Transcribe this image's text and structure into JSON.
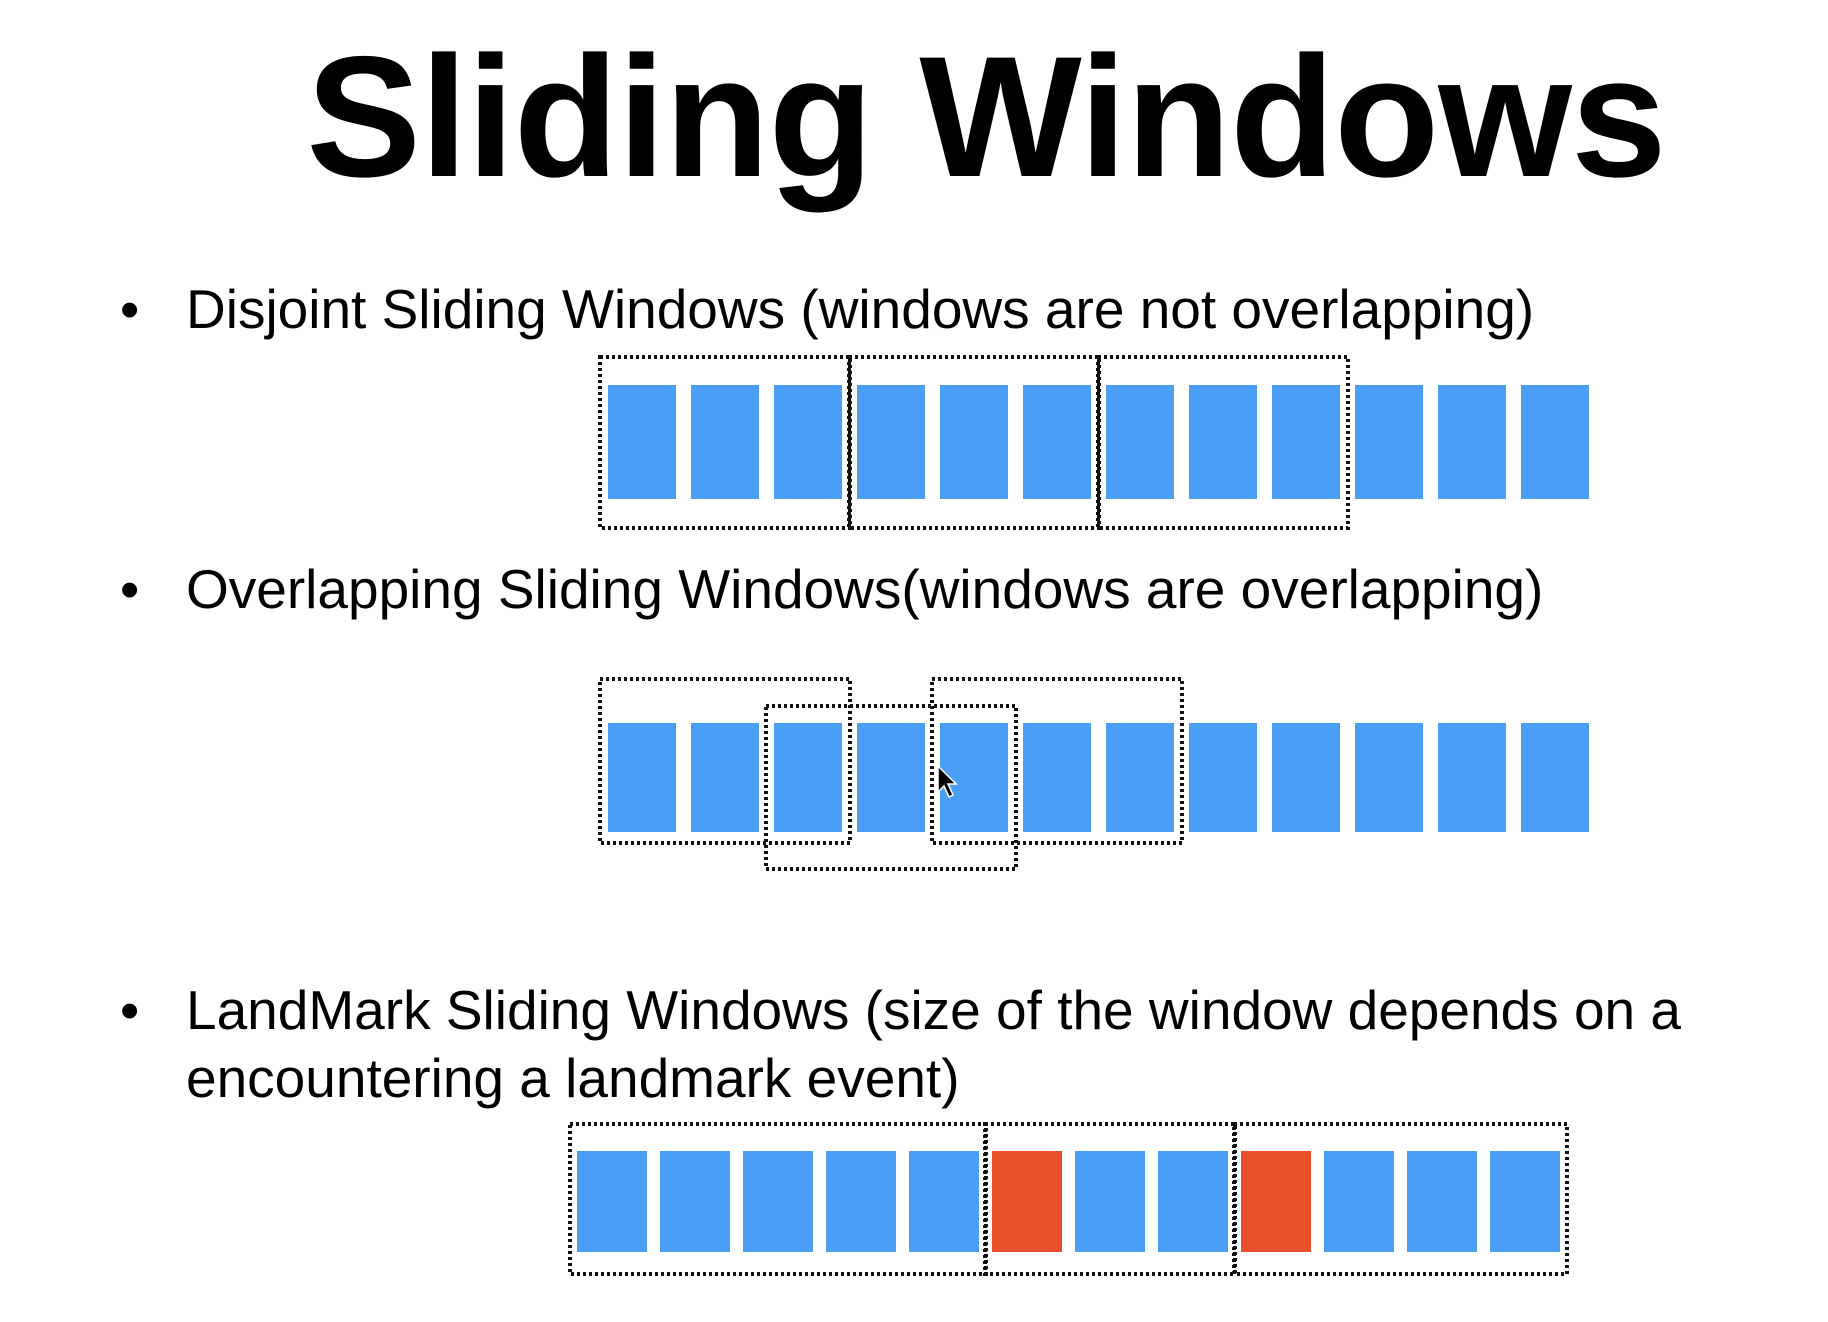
{
  "slide": {
    "title": "Sliding Windows"
  },
  "bullets": [
    {
      "marker": "•",
      "text": "Disjoint Sliding Windows (windows are not overlapping)"
    },
    {
      "marker": "•",
      "text": "Overlapping Sliding Windows(windows are overlapping)"
    },
    {
      "marker": "•",
      "text": "LandMark Sliding Windows (size of the window depends on a\nencountering a landmark event)"
    }
  ],
  "colors": {
    "event": "#4a9ff5",
    "landmark": "#e8502c",
    "window_border": "#111111"
  },
  "diagrams": {
    "disjoint": {
      "event_count": 12,
      "landmark_indices": [],
      "windows": [
        {
          "start": 0,
          "end": 2
        },
        {
          "start": 3,
          "end": 5
        },
        {
          "start": 6,
          "end": 8
        }
      ]
    },
    "overlapping": {
      "event_count": 12,
      "landmark_indices": [],
      "windows": [
        {
          "start": 0,
          "end": 2,
          "tier": "outer"
        },
        {
          "start": 2,
          "end": 4,
          "tier": "inner"
        },
        {
          "start": 4,
          "end": 6,
          "tier": "outer"
        }
      ]
    },
    "landmark": {
      "event_count": 12,
      "landmark_indices": [
        5,
        8
      ],
      "windows": [
        {
          "start": 0,
          "end": 4
        },
        {
          "start": 5,
          "end": 7
        },
        {
          "start": 8,
          "end": 11
        }
      ]
    }
  }
}
